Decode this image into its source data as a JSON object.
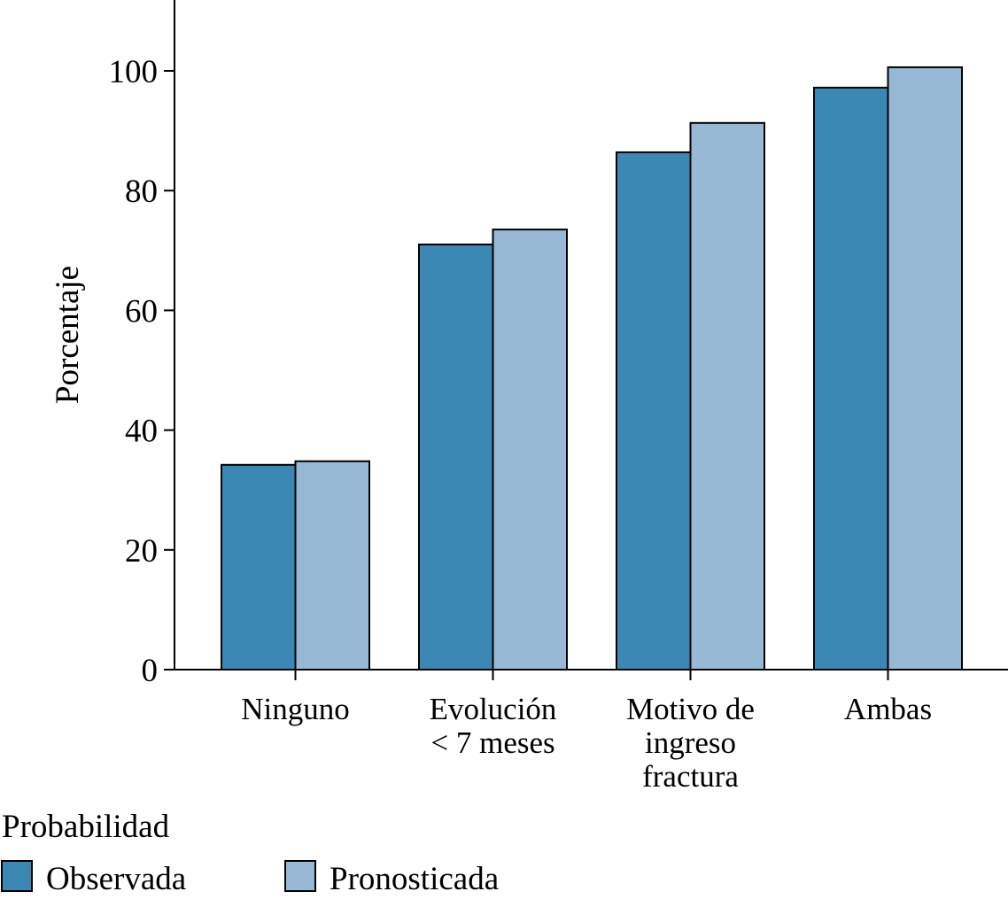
{
  "chart_data": {
    "type": "bar",
    "title": "",
    "xlabel": "",
    "ylabel": "Porcentaje",
    "ylim": [
      0,
      111.8
    ],
    "yticks": [
      0,
      20,
      40,
      60,
      80,
      100
    ],
    "grid": false,
    "categories": [
      [
        "Ninguno"
      ],
      [
        "Evolución",
        "< 7 meses"
      ],
      [
        "Motivo de",
        "ingreso",
        "fractura"
      ],
      [
        "Ambas"
      ]
    ],
    "series": [
      {
        "name": "Observada",
        "color": "#3b88b5",
        "values": [
          34.2,
          71.0,
          86.4,
          97.2
        ]
      },
      {
        "name": "Pronosticada",
        "color": "#98b9d6",
        "values": [
          34.8,
          73.5,
          91.3,
          100.6
        ]
      }
    ],
    "legend": {
      "title": "Probabilidad",
      "placement": "bottom-left"
    }
  }
}
